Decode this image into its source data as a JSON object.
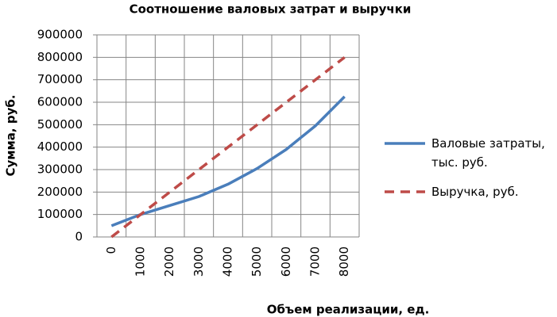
{
  "chart_data": {
    "type": "line",
    "title": "Соотношение валовых затрат и выручки",
    "x_label": "Объем реализации, ед.",
    "y_label": "Сумма, руб.",
    "categories": [
      "0",
      "1000",
      "2000",
      "3000",
      "4000",
      "5000",
      "6000",
      "7000",
      "8000"
    ],
    "series": [
      {
        "name": "Валовые затраты, тыс. руб.",
        "color": "#4a7ebb",
        "dashed": false,
        "values": [
          50000,
          100000,
          140000,
          180000,
          235000,
          305000,
          390000,
          495000,
          625000
        ]
      },
      {
        "name": "Выручка, руб.",
        "color": "#be4b48",
        "dashed": true,
        "values": [
          0,
          100000,
          200000,
          300000,
          400000,
          500000,
          600000,
          700000,
          800000
        ]
      }
    ],
    "ylim": [
      0,
      900000
    ],
    "yticks": [
      0,
      100000,
      200000,
      300000,
      400000,
      500000,
      600000,
      700000,
      800000,
      900000
    ],
    "grid": true,
    "legend": "right"
  }
}
